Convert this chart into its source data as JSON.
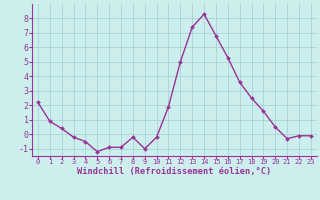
{
  "x": [
    0,
    1,
    2,
    3,
    4,
    5,
    6,
    7,
    8,
    9,
    10,
    11,
    12,
    13,
    14,
    15,
    16,
    17,
    18,
    19,
    20,
    21,
    22,
    23
  ],
  "y": [
    2.2,
    0.9,
    0.4,
    -0.2,
    -0.5,
    -1.2,
    -0.9,
    -0.9,
    -0.2,
    -1.0,
    -0.2,
    1.9,
    5.0,
    7.4,
    8.3,
    6.8,
    5.3,
    3.6,
    2.5,
    1.6,
    0.5,
    -0.3,
    -0.1,
    -0.1
  ],
  "line_color": "#993399",
  "marker": "D",
  "marker_size": 2.0,
  "background_color": "#cceeed",
  "grid_color": "#aad8d8",
  "xlabel": "Windchill (Refroidissement éolien,°C)",
  "xlim": [
    -0.5,
    23.5
  ],
  "ylim": [
    -1.5,
    9.0
  ],
  "yticks": [
    -1,
    0,
    1,
    2,
    3,
    4,
    5,
    6,
    7,
    8
  ],
  "xticks": [
    0,
    1,
    2,
    3,
    4,
    5,
    6,
    7,
    8,
    9,
    10,
    11,
    12,
    13,
    14,
    15,
    16,
    17,
    18,
    19,
    20,
    21,
    22,
    23
  ],
  "tick_color": "#993399",
  "label_color": "#993399",
  "spine_color": "#993399",
  "xtick_fontsize": 5.0,
  "ytick_fontsize": 6.0,
  "xlabel_fontsize": 6.2,
  "linewidth": 1.0
}
